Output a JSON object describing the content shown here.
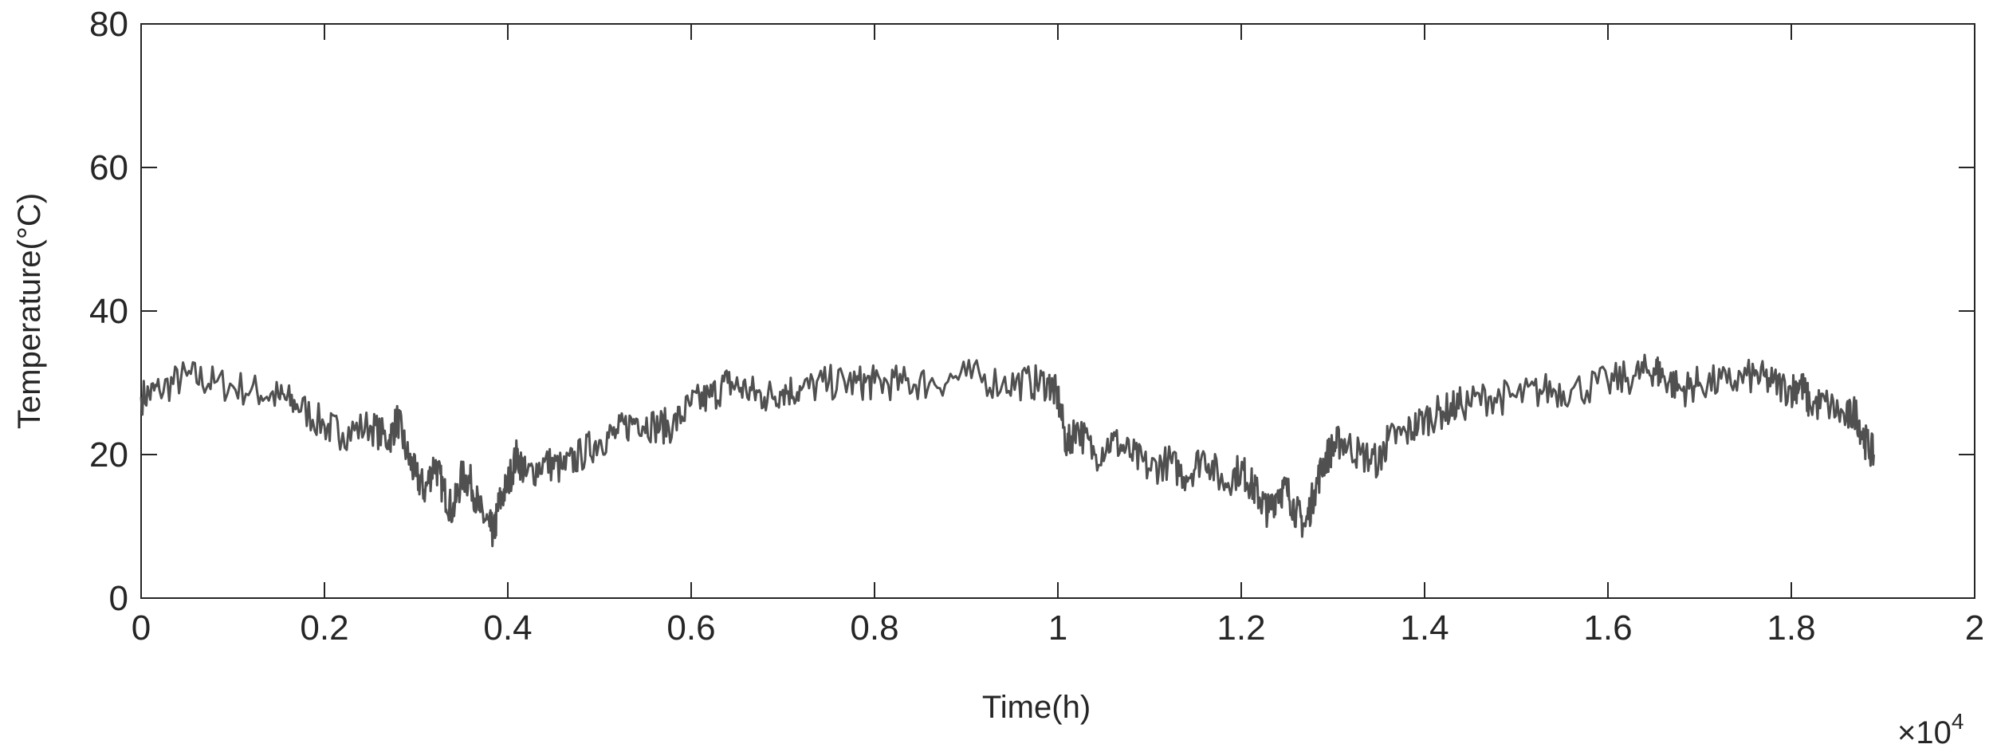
{
  "chart_data": {
    "type": "line",
    "xlabel": "Time(h)",
    "ylabel": "Temperature(°C)",
    "x_exponent_label": {
      "base": "×10",
      "exponent": "4"
    },
    "xlim": [
      0,
      2
    ],
    "ylim": [
      0,
      80
    ],
    "x_ticks": [
      "0",
      "0.2",
      "0.4",
      "0.6",
      "0.8",
      "1",
      "1.2",
      "1.4",
      "1.6",
      "1.8",
      "2"
    ],
    "y_ticks": [
      "0",
      "20",
      "40",
      "60",
      "80"
    ],
    "grid": false,
    "line_color": "#505050",
    "series": [
      {
        "x": [
          0,
          0.02,
          0.05,
          0.08,
          0.12,
          0.15,
          0.17,
          0.2,
          0.22,
          0.25,
          0.27,
          0.28,
          0.29,
          0.3,
          0.31,
          0.32,
          0.33,
          0.34,
          0.35,
          0.36,
          0.37,
          0.38,
          0.385,
          0.39,
          0.4,
          0.41,
          0.42,
          0.44,
          0.46,
          0.48,
          0.5,
          0.52,
          0.54,
          0.56,
          0.58,
          0.6,
          0.62,
          0.64,
          0.66,
          0.68,
          0.7,
          0.72,
          0.75,
          0.78,
          0.8,
          0.83,
          0.86,
          0.9,
          0.94,
          0.97,
          0.99,
          1.0,
          1.01,
          1.02,
          1.04,
          1.06,
          1.08,
          1.1,
          1.12,
          1.14,
          1.16,
          1.18,
          1.2,
          1.21,
          1.22,
          1.23,
          1.24,
          1.25,
          1.26,
          1.27,
          1.28,
          1.29,
          1.3,
          1.31,
          1.33,
          1.35,
          1.36,
          1.38,
          1.4,
          1.42,
          1.44,
          1.47,
          1.5,
          1.53,
          1.56,
          1.6,
          1.63,
          1.65,
          1.66,
          1.68,
          1.7,
          1.73,
          1.76,
          1.78,
          1.8,
          1.81,
          1.82,
          1.84,
          1.86,
          1.87,
          1.88,
          1.89
        ],
        "y": [
          28,
          29,
          31,
          30,
          29,
          28,
          27,
          24,
          23,
          24,
          22,
          25,
          20,
          17,
          15,
          19,
          15,
          12,
          17,
          16,
          12,
          10,
          9,
          13,
          16,
          20,
          17,
          19,
          18,
          20,
          22,
          23,
          25,
          24,
          24,
          27,
          28,
          30,
          29,
          28,
          29,
          29,
          30,
          30,
          30,
          30,
          30,
          31,
          30,
          30,
          30,
          28,
          21,
          24,
          20,
          22,
          20,
          18,
          19,
          17,
          20,
          16,
          18,
          16,
          14,
          12,
          15,
          15,
          12,
          10,
          15,
          19,
          21,
          22,
          20,
          19,
          22,
          23,
          25,
          26,
          27,
          28,
          28,
          29,
          29,
          30,
          31,
          32,
          31,
          29,
          30,
          30,
          31,
          30,
          29,
          30,
          27,
          27,
          25,
          26,
          22,
          20
        ]
      }
    ]
  }
}
